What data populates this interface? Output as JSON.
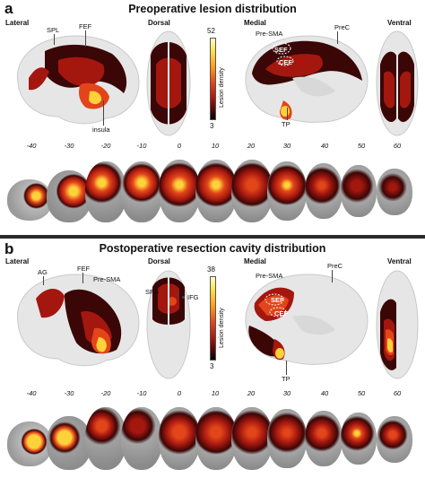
{
  "panel_a": {
    "letter": "a",
    "title": "Preoperative lesion distribution",
    "views": {
      "lateral": "Lateral",
      "dorsal": "Dorsal",
      "medial": "Medial",
      "ventral": "Ventral"
    },
    "annotations": {
      "spl": "SPL",
      "fef": "FEF",
      "insula": "insula",
      "pre_sma": "Pre-SMA",
      "prec": "PreC",
      "sef": "SEF",
      "cef": "CEF",
      "tp": "TP"
    },
    "colorbar": {
      "max": "52",
      "min": "3",
      "label": "Lesion density"
    },
    "slice_coords": [
      "-40",
      "-30",
      "-20",
      "-10",
      "0",
      "10",
      "20",
      "30",
      "40",
      "50",
      "60"
    ]
  },
  "panel_b": {
    "letter": "b",
    "title": "Postoperative resection cavity distribution",
    "views": {
      "lateral": "Lateral",
      "dorsal": "Dorsal",
      "medial": "Medial",
      "ventral": "Ventral"
    },
    "annotations": {
      "ag": "AG",
      "fef": "FEF",
      "pre_sma": "Pre-SMA",
      "sfg": "SFG",
      "ifg": "IFG",
      "prec": "PreC",
      "sef": "SEF",
      "cef": "CEF",
      "tp": "TP"
    },
    "colorbar": {
      "max": "38",
      "min": "3",
      "label": "Lesion density"
    },
    "slice_coords": [
      "-40",
      "-30",
      "-20",
      "-10",
      "0",
      "10",
      "20",
      "30",
      "40",
      "50",
      "60"
    ]
  },
  "colors": {
    "cortex": "#e6e6e6",
    "cortex_shadow": "#c9c9c9",
    "low": "#3a0606",
    "mid": "#a3170f",
    "high": "#e2451a",
    "peak": "#ffd23a"
  }
}
